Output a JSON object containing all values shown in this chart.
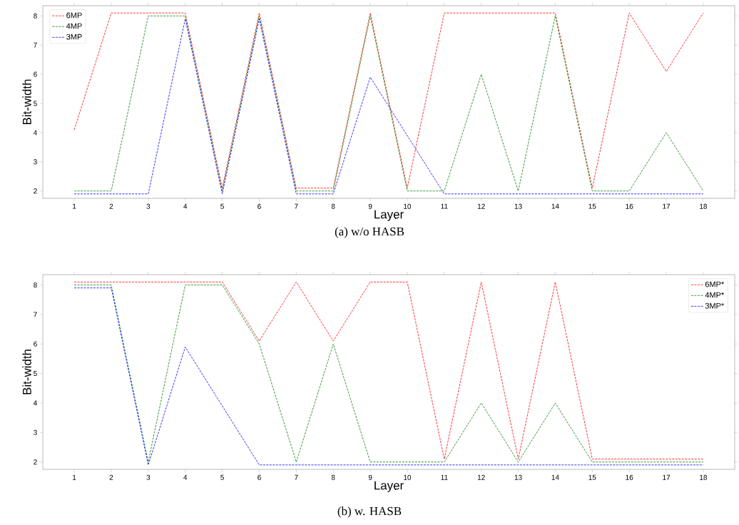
{
  "chart_data": [
    {
      "type": "line",
      "x": [
        1,
        2,
        3,
        4,
        5,
        6,
        7,
        8,
        9,
        10,
        11,
        12,
        13,
        14,
        15,
        16,
        17,
        18
      ],
      "xlabel": "Layer",
      "ylabel": "Bit-width",
      "xlim": [
        0.15,
        18.85
      ],
      "ylim": [
        1.75,
        8.35
      ],
      "xticks": [
        1,
        2,
        3,
        4,
        5,
        6,
        7,
        8,
        9,
        10,
        11,
        12,
        13,
        14,
        15,
        16,
        17,
        18
      ],
      "yticks": [
        2,
        3,
        4,
        5,
        6,
        7,
        8
      ],
      "legend": "top left",
      "line_style": "dashed",
      "marker": "none",
      "annotations": [
        "(a) w/o HASB"
      ],
      "series": [
        {
          "name": "6MP",
          "color": "#ff0000",
          "values": [
            4.1,
            8.1,
            8.1,
            8.1,
            2.1,
            8.1,
            2.1,
            2.1,
            8.1,
            2.1,
            8.1,
            8.1,
            8.1,
            8.1,
            2.1,
            8.1,
            6.1,
            8.1
          ]
        },
        {
          "name": "4MP",
          "color": "#008000",
          "values": [
            2,
            2,
            8,
            8,
            2,
            8,
            2,
            2,
            8,
            2,
            2,
            6,
            2,
            8,
            2,
            2,
            4,
            2
          ]
        },
        {
          "name": "3MP",
          "color": "#0000ff",
          "values": [
            1.9,
            1.9,
            1.9,
            7.9,
            1.9,
            7.9,
            1.9,
            1.9,
            5.9,
            3.9,
            1.9,
            1.9,
            1.9,
            1.9,
            1.9,
            1.9,
            1.9,
            1.9
          ]
        }
      ]
    },
    {
      "type": "line",
      "x": [
        1,
        2,
        3,
        4,
        5,
        6,
        7,
        8,
        9,
        10,
        11,
        12,
        13,
        14,
        15,
        16,
        17,
        18
      ],
      "xlabel": "Layer",
      "ylabel": "Bit-width",
      "xlim": [
        0.15,
        18.85
      ],
      "ylim": [
        1.75,
        8.35
      ],
      "xticks": [
        1,
        2,
        3,
        4,
        5,
        6,
        7,
        8,
        9,
        10,
        11,
        12,
        13,
        14,
        15,
        16,
        17,
        18
      ],
      "yticks": [
        2,
        3,
        4,
        5,
        6,
        7,
        8
      ],
      "legend": "top right",
      "line_style": "dashed",
      "marker": "none",
      "annotations": [
        "(b) w. HASB"
      ],
      "series": [
        {
          "name": "6MP*",
          "color": "#ff0000",
          "values": [
            8.1,
            8.1,
            8.1,
            8.1,
            8.1,
            6.1,
            8.1,
            6.1,
            8.1,
            8.1,
            2.1,
            8.1,
            2.1,
            8.1,
            2.1,
            2.1,
            2.1,
            2.1
          ]
        },
        {
          "name": "4MP*",
          "color": "#008000",
          "values": [
            8,
            8,
            2,
            8,
            8,
            6,
            2,
            6,
            2,
            2,
            2,
            4,
            2,
            4,
            2,
            2,
            2,
            2
          ]
        },
        {
          "name": "3MP*",
          "color": "#0000ff",
          "values": [
            7.9,
            7.9,
            1.9,
            5.9,
            3.9,
            1.9,
            1.9,
            1.9,
            1.9,
            1.9,
            1.9,
            1.9,
            1.9,
            1.9,
            1.9,
            1.9,
            1.9,
            1.9
          ]
        }
      ]
    }
  ]
}
